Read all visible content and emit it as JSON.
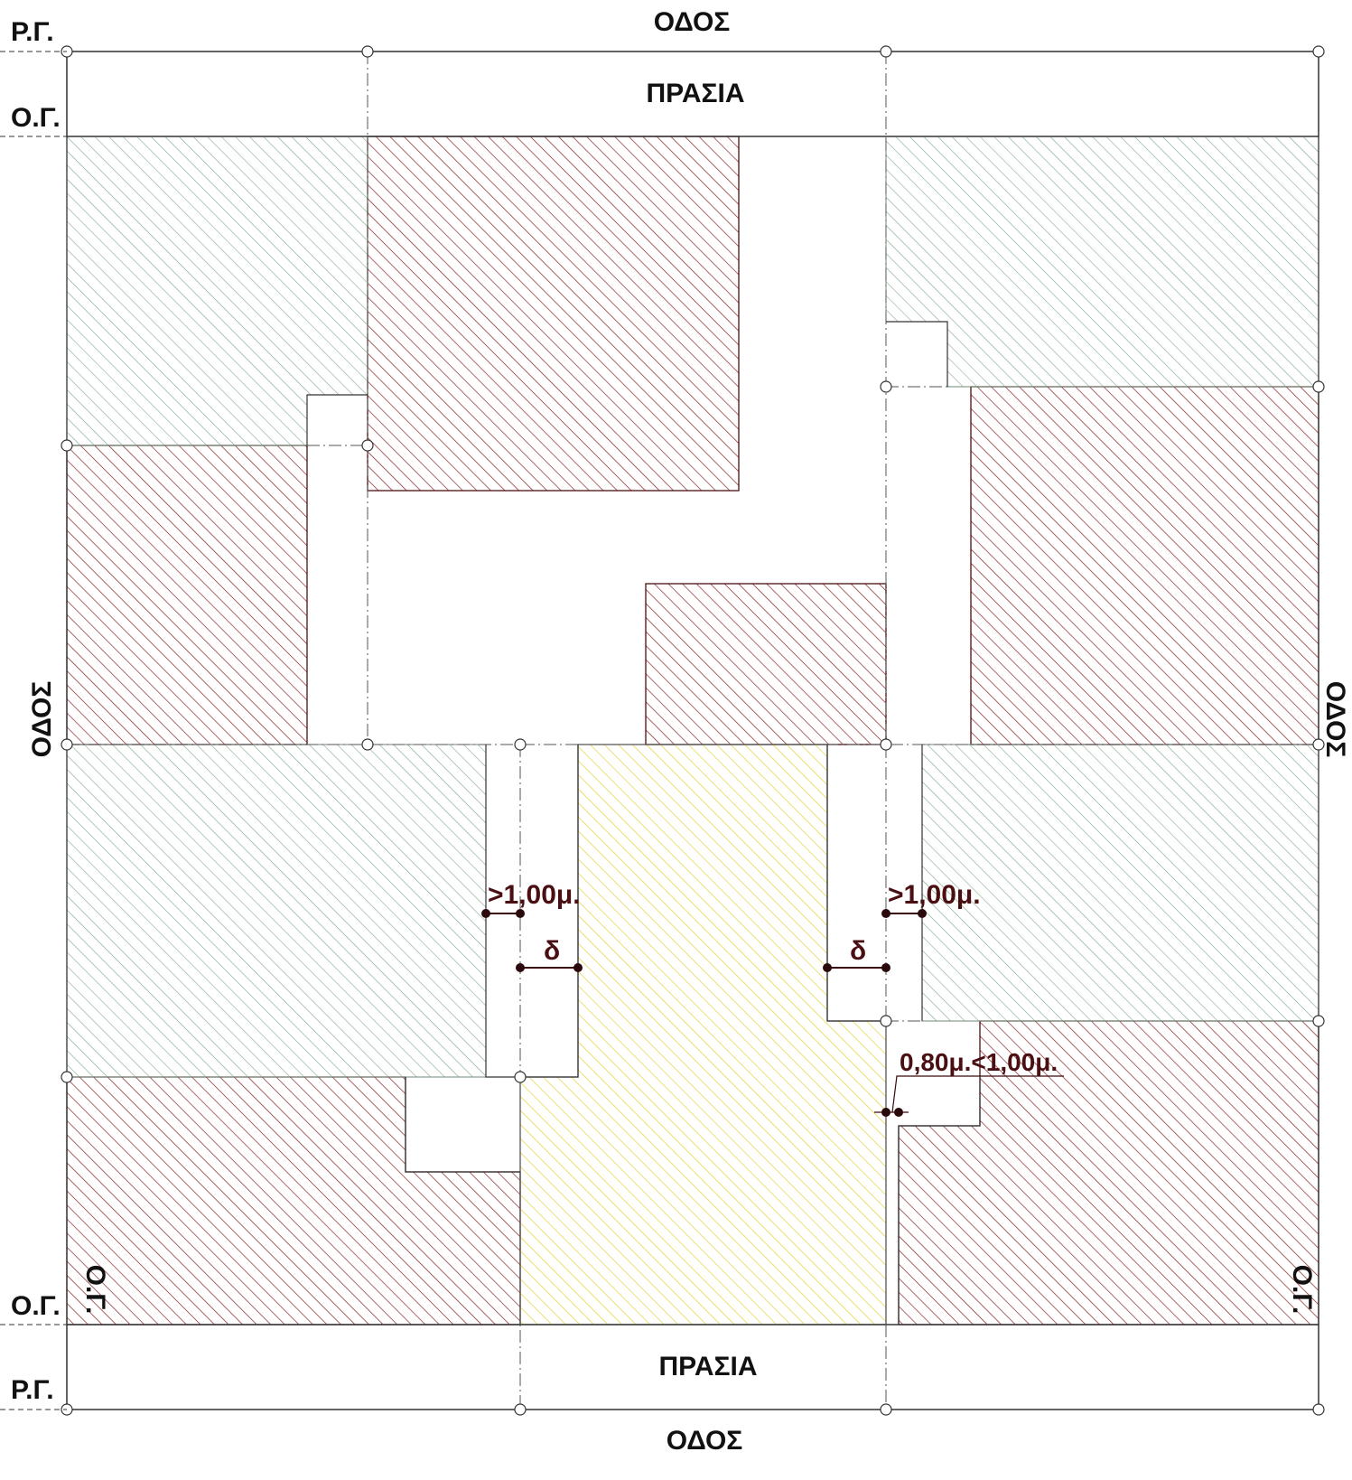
{
  "labels": {
    "road_top": "ΟΔΟΣ",
    "road_bottom": "ΟΔΟΣ",
    "road_left": "ΟΔΟΣ",
    "road_right": "ΟΔΟΣ",
    "rg_top": "Ρ.Γ.",
    "og_top": "Ο.Γ.",
    "og_bottom_left": "Ο.Γ.",
    "rg_bottom": "Ρ.Γ.",
    "og_left_vertical": "Ο.Γ.",
    "og_right_vertical": "Ο.Γ.",
    "prasia_top": "ΠΡΑΣΙΑ",
    "prasia_bottom": "ΠΡΑΣΙΑ"
  },
  "dimensions": {
    "gap_left": ">1,00μ.",
    "gap_right": ">1,00μ.",
    "delta_left": "δ",
    "delta_right": "δ",
    "small_gap": "0,80μ.<1,00μ."
  },
  "colors": {
    "building_hatch": "#8b2328",
    "yard_hatch": "#7fa68a",
    "subject_plot_hatch": "#e2d23a",
    "prasia_symbol": "#444444"
  },
  "icons": {
    "prasia_fill": "vegetation-arrow-symbol",
    "property_corner": "open-circle-marker",
    "dimension_end": "filled-dot-marker"
  }
}
